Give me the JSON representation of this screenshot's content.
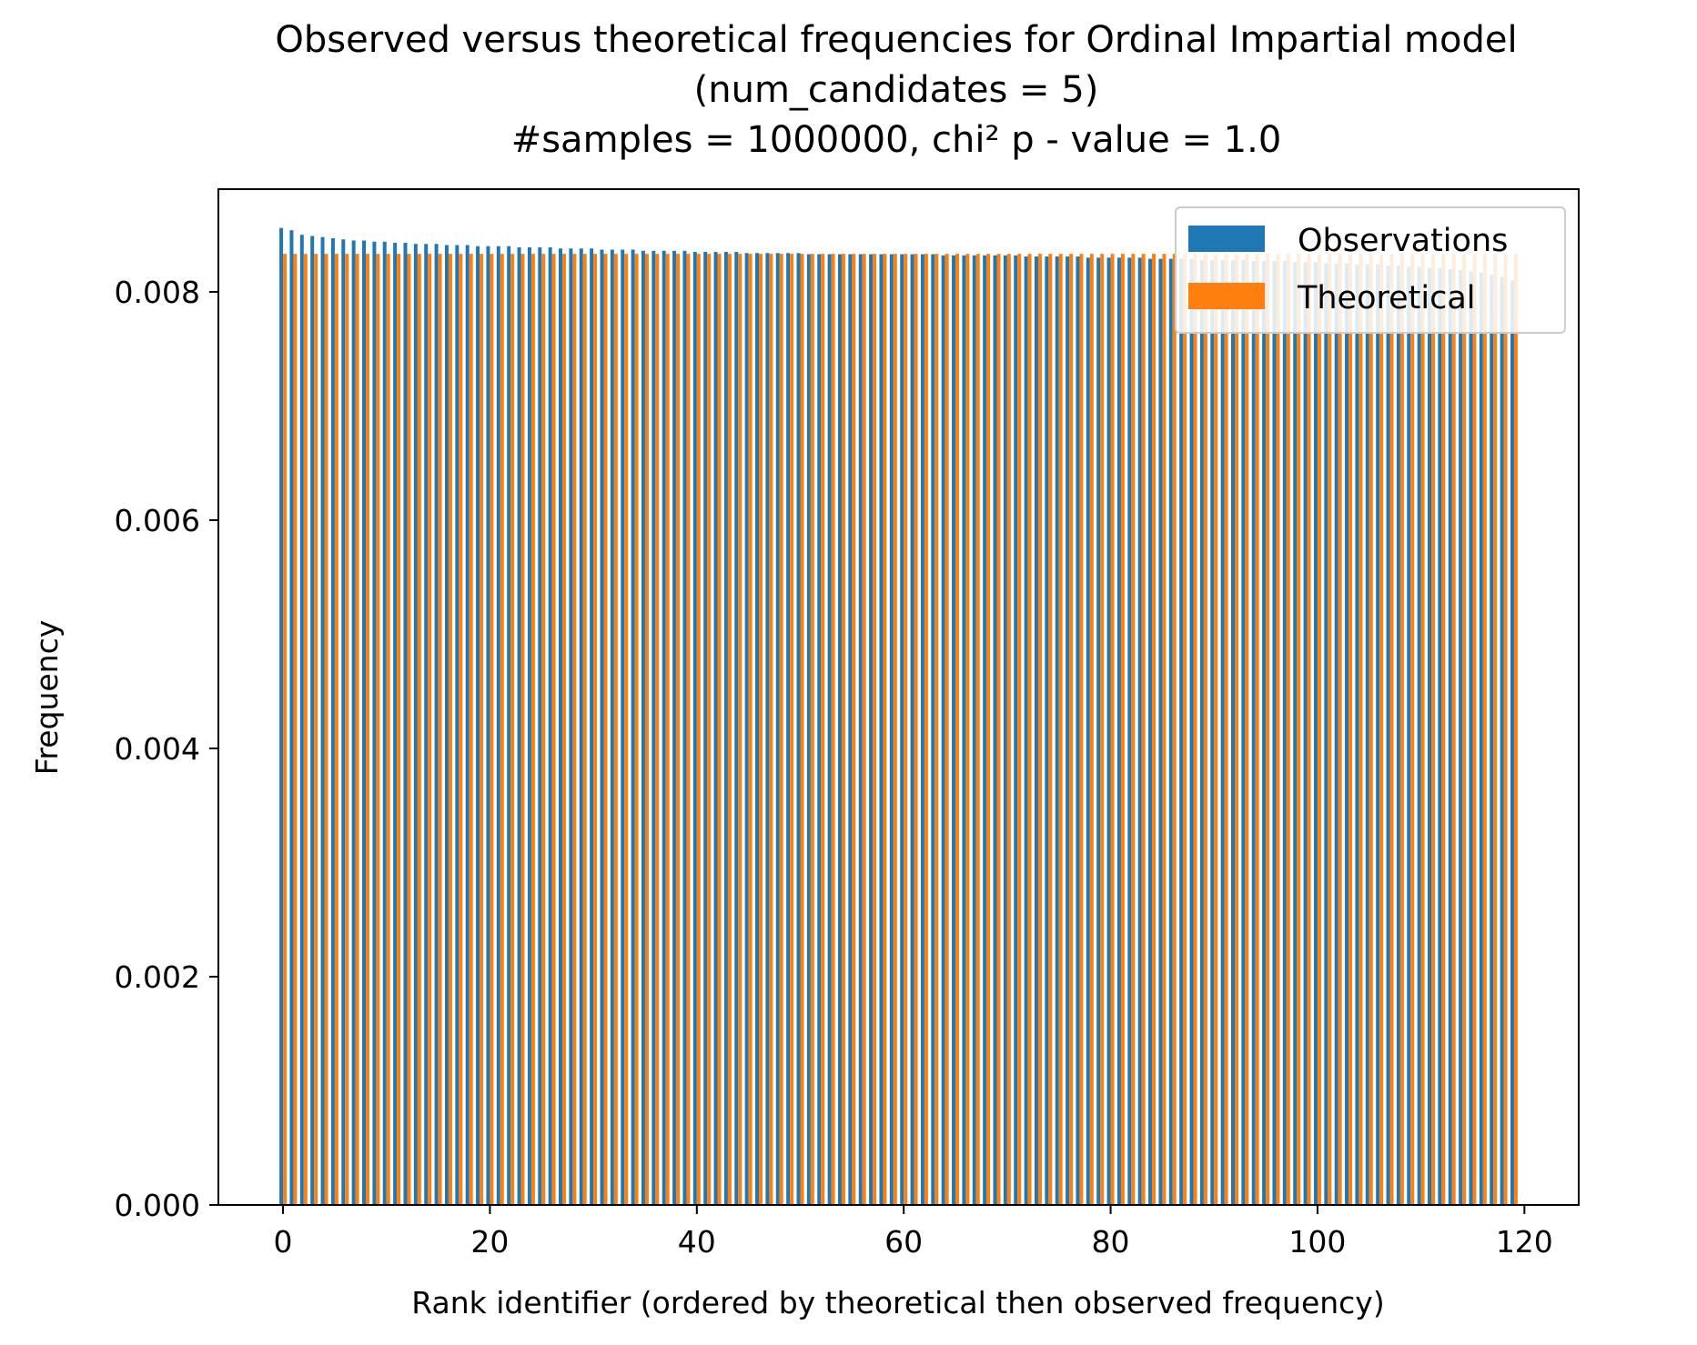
{
  "chart_data": {
    "type": "bar",
    "title_lines": [
      "Observed versus theoretical frequencies for Ordinal Impartial model",
      "(num_candidates = 5)",
      "#samples = 1000000, chi² p - value = 1.0"
    ],
    "xlabel": "Rank identifier (ordered by theoretical then observed frequency)",
    "ylabel": "Frequency",
    "xlim": [
      -6.25,
      125.25
    ],
    "ylim": [
      0,
      0.0089
    ],
    "xticks": [
      0,
      20,
      40,
      60,
      80,
      100,
      120
    ],
    "xtick_labels": [
      "0",
      "20",
      "40",
      "60",
      "80",
      "100",
      "120"
    ],
    "yticks": [
      0.0,
      0.002,
      0.004,
      0.006,
      0.008
    ],
    "ytick_labels": [
      "0.000",
      "0.002",
      "0.004",
      "0.006",
      "0.008"
    ],
    "legend": {
      "placement": "top-right",
      "entries": [
        "Observations",
        "Theoretical"
      ]
    },
    "grid": false,
    "colors": {
      "Observations": "#1f77b4",
      "Theoretical": "#ff7f0e"
    },
    "x_count": 120,
    "series": [
      {
        "name": "Observations",
        "values": [
          0.00856,
          0.00854,
          0.0085,
          0.00849,
          0.00848,
          0.00847,
          0.00846,
          0.00845,
          0.00845,
          0.00844,
          0.00844,
          0.00843,
          0.00843,
          0.00842,
          0.00842,
          0.00842,
          0.00841,
          0.00841,
          0.00841,
          0.0084,
          0.0084,
          0.0084,
          0.0084,
          0.00839,
          0.00839,
          0.00839,
          0.00839,
          0.00838,
          0.00838,
          0.00838,
          0.00838,
          0.00837,
          0.00837,
          0.00837,
          0.00837,
          0.00836,
          0.00836,
          0.00836,
          0.00836,
          0.00836,
          0.00835,
          0.00835,
          0.00835,
          0.00835,
          0.00835,
          0.00834,
          0.00834,
          0.00834,
          0.00834,
          0.00834,
          0.00834,
          0.00833,
          0.00833,
          0.00833,
          0.00833,
          0.00833,
          0.00833,
          0.00833,
          0.00833,
          0.00833,
          0.00833,
          0.00833,
          0.00833,
          0.00833,
          0.00832,
          0.00832,
          0.00832,
          0.00832,
          0.00832,
          0.00832,
          0.00832,
          0.00832,
          0.00831,
          0.00831,
          0.00831,
          0.00831,
          0.00831,
          0.00831,
          0.0083,
          0.0083,
          0.0083,
          0.0083,
          0.0083,
          0.0083,
          0.00829,
          0.00829,
          0.00829,
          0.00829,
          0.00829,
          0.00828,
          0.00828,
          0.00828,
          0.00828,
          0.00828,
          0.00827,
          0.00827,
          0.00827,
          0.00827,
          0.00826,
          0.00826,
          0.00826,
          0.00825,
          0.00825,
          0.00825,
          0.00824,
          0.00824,
          0.00824,
          0.00823,
          0.00823,
          0.00822,
          0.00822,
          0.00821,
          0.00821,
          0.0082,
          0.00819,
          0.00818,
          0.00817,
          0.00815,
          0.00813,
          0.0081
        ]
      },
      {
        "name": "Theoretical",
        "values": [
          0.008333,
          0.008333,
          0.008333,
          0.008333,
          0.008333,
          0.008333,
          0.008333,
          0.008333,
          0.008333,
          0.008333,
          0.008333,
          0.008333,
          0.008333,
          0.008333,
          0.008333,
          0.008333,
          0.008333,
          0.008333,
          0.008333,
          0.008333,
          0.008333,
          0.008333,
          0.008333,
          0.008333,
          0.008333,
          0.008333,
          0.008333,
          0.008333,
          0.008333,
          0.008333,
          0.008333,
          0.008333,
          0.008333,
          0.008333,
          0.008333,
          0.008333,
          0.008333,
          0.008333,
          0.008333,
          0.008333,
          0.008333,
          0.008333,
          0.008333,
          0.008333,
          0.008333,
          0.008333,
          0.008333,
          0.008333,
          0.008333,
          0.008333,
          0.008333,
          0.008333,
          0.008333,
          0.008333,
          0.008333,
          0.008333,
          0.008333,
          0.008333,
          0.008333,
          0.008333,
          0.008333,
          0.008333,
          0.008333,
          0.008333,
          0.008333,
          0.008333,
          0.008333,
          0.008333,
          0.008333,
          0.008333,
          0.008333,
          0.008333,
          0.008333,
          0.008333,
          0.008333,
          0.008333,
          0.008333,
          0.008333,
          0.008333,
          0.008333,
          0.008333,
          0.008333,
          0.008333,
          0.008333,
          0.008333,
          0.008333,
          0.008333,
          0.008333,
          0.008333,
          0.008333,
          0.008333,
          0.008333,
          0.008333,
          0.008333,
          0.008333,
          0.008333,
          0.008333,
          0.008333,
          0.008333,
          0.008333,
          0.008333,
          0.008333,
          0.008333,
          0.008333,
          0.008333,
          0.008333,
          0.008333,
          0.008333,
          0.008333,
          0.008333,
          0.008333,
          0.008333,
          0.008333,
          0.008333,
          0.008333,
          0.008333,
          0.008333,
          0.008333,
          0.008333,
          0.008333
        ]
      }
    ]
  }
}
